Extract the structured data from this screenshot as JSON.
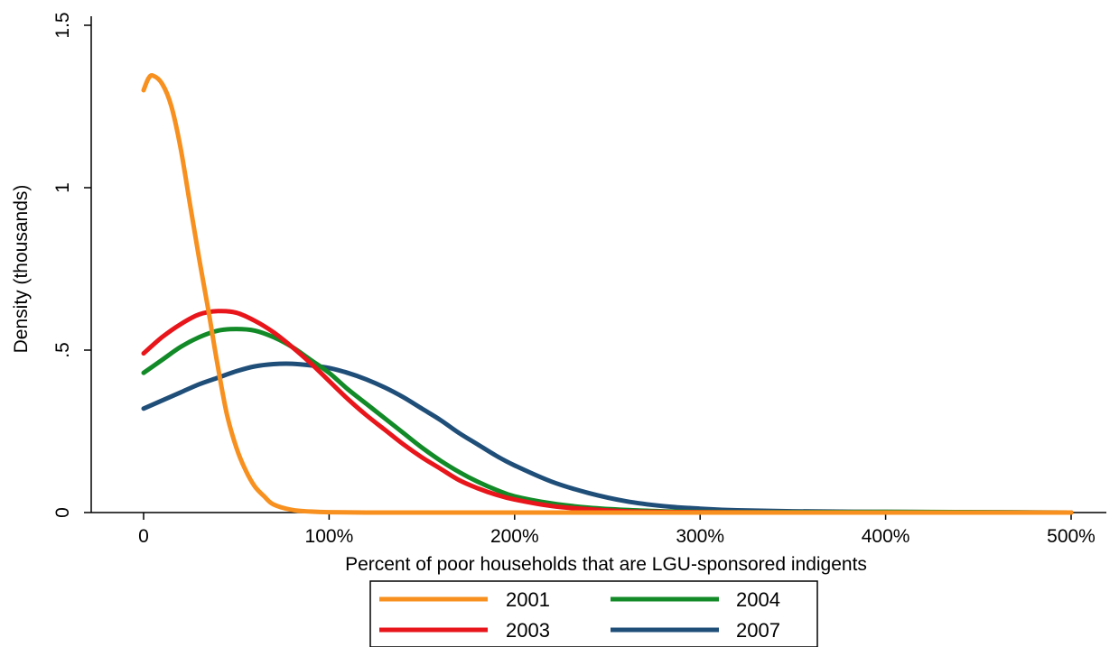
{
  "chart_data": {
    "type": "line",
    "title": "",
    "xlabel": "Percent of poor households that are LGU-sponsored indigents",
    "ylabel": "Density (thousands)",
    "xlim": [
      0,
      5
    ],
    "ylim": [
      0,
      1.5
    ],
    "x_ticks": [
      0,
      1,
      2,
      3,
      4,
      5
    ],
    "x_tick_labels": [
      "0",
      "100%",
      "200%",
      "300%",
      "400%",
      "500%"
    ],
    "y_ticks": [
      0,
      0.5,
      1,
      1.5
    ],
    "y_tick_labels": [
      "0",
      ".5",
      "1",
      "1.5"
    ],
    "grid": false,
    "legend_position": "bottom",
    "series": [
      {
        "name": "2001",
        "color": "#f7901e",
        "x": [
          0,
          0.025,
          0.05,
          0.1,
          0.15,
          0.2,
          0.25,
          0.3,
          0.35,
          0.4,
          0.45,
          0.5,
          0.55,
          0.6,
          0.65,
          0.7,
          0.8,
          0.9,
          1.0,
          1.2,
          1.5,
          2.0,
          3.0,
          4.0,
          5.0
        ],
        "y": [
          1.3,
          1.335,
          1.345,
          1.32,
          1.25,
          1.12,
          0.95,
          0.78,
          0.62,
          0.45,
          0.3,
          0.2,
          0.13,
          0.08,
          0.05,
          0.025,
          0.008,
          0.003,
          0.001,
          0.0,
          0.0,
          0.0,
          0.0,
          0.0,
          0.0
        ]
      },
      {
        "name": "2003",
        "color": "#e8151b",
        "x": [
          0,
          0.1,
          0.2,
          0.3,
          0.4,
          0.5,
          0.6,
          0.7,
          0.8,
          0.9,
          1.0,
          1.1,
          1.2,
          1.3,
          1.4,
          1.5,
          1.6,
          1.7,
          1.8,
          1.9,
          2.0,
          2.2,
          2.4,
          2.6,
          2.8,
          3.0,
          3.5,
          4.0,
          5.0
        ],
        "y": [
          0.49,
          0.54,
          0.58,
          0.61,
          0.62,
          0.615,
          0.59,
          0.555,
          0.51,
          0.46,
          0.405,
          0.35,
          0.3,
          0.255,
          0.21,
          0.17,
          0.135,
          0.1,
          0.075,
          0.055,
          0.04,
          0.02,
          0.01,
          0.004,
          0.002,
          0.001,
          0.0,
          0.0,
          0.0
        ]
      },
      {
        "name": "2004",
        "color": "#128a27",
        "x": [
          0,
          0.1,
          0.2,
          0.3,
          0.4,
          0.5,
          0.6,
          0.7,
          0.8,
          0.9,
          1.0,
          1.1,
          1.2,
          1.3,
          1.4,
          1.5,
          1.6,
          1.7,
          1.8,
          1.9,
          2.0,
          2.2,
          2.4,
          2.6,
          2.8,
          3.0,
          3.5,
          4.0,
          4.5,
          5.0
        ],
        "y": [
          0.43,
          0.47,
          0.51,
          0.54,
          0.56,
          0.565,
          0.56,
          0.54,
          0.51,
          0.47,
          0.43,
          0.38,
          0.335,
          0.29,
          0.245,
          0.2,
          0.16,
          0.125,
          0.095,
          0.07,
          0.05,
          0.028,
          0.015,
          0.008,
          0.004,
          0.002,
          0.001,
          0.002,
          0.001,
          0.0
        ]
      },
      {
        "name": "2007",
        "color": "#1f4e79",
        "x": [
          0,
          0.1,
          0.2,
          0.3,
          0.4,
          0.5,
          0.6,
          0.7,
          0.8,
          0.9,
          1.0,
          1.1,
          1.2,
          1.3,
          1.4,
          1.5,
          1.6,
          1.7,
          1.8,
          1.9,
          2.0,
          2.2,
          2.4,
          2.6,
          2.8,
          3.0,
          3.2,
          3.5,
          4.0,
          4.5,
          5.0
        ],
        "y": [
          0.32,
          0.345,
          0.37,
          0.395,
          0.415,
          0.435,
          0.45,
          0.457,
          0.458,
          0.453,
          0.445,
          0.43,
          0.41,
          0.385,
          0.355,
          0.32,
          0.285,
          0.245,
          0.21,
          0.175,
          0.145,
          0.095,
          0.06,
          0.035,
          0.02,
          0.012,
          0.007,
          0.004,
          0.002,
          0.001,
          0.0
        ]
      }
    ]
  }
}
